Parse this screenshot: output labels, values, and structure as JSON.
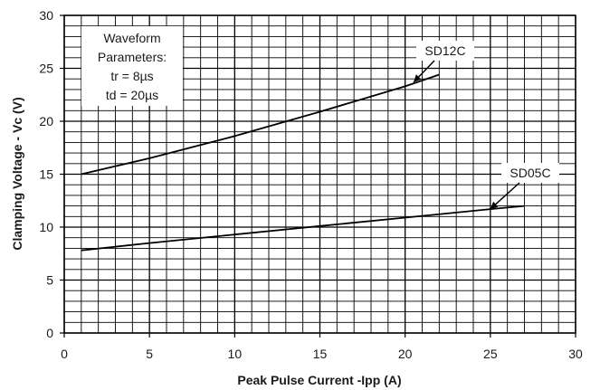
{
  "chart_data": {
    "type": "line",
    "xlabel": "Peak Pulse Current -Ipp (A)",
    "ylabel": "Clamping Voltage - Vc (V)",
    "xlim": [
      0,
      30
    ],
    "ylim": [
      0,
      30
    ],
    "x_ticks": [
      0,
      5,
      10,
      15,
      20,
      25,
      30
    ],
    "y_ticks": [
      0,
      5,
      10,
      15,
      20,
      25,
      30
    ],
    "x_tick_labels": [
      "0",
      "5",
      "10",
      "15",
      "20",
      "25",
      "30"
    ],
    "y_tick_labels": [
      "0",
      "5",
      "10",
      "15",
      "20",
      "25",
      "30"
    ],
    "grid": true,
    "minor_grid_step": 1,
    "series": [
      {
        "name": "SD12C",
        "color": "#000000",
        "x": [
          1,
          5,
          10,
          15,
          20,
          22
        ],
        "y": [
          15,
          16.5,
          18.6,
          20.9,
          23.3,
          24.4
        ]
      },
      {
        "name": "SD05C",
        "color": "#000000",
        "x": [
          1,
          5,
          10,
          15,
          20,
          25,
          27
        ],
        "y": [
          7.8,
          8.5,
          9.3,
          10.1,
          10.9,
          11.7,
          12
        ]
      }
    ],
    "annotations": [
      {
        "text": "SD12C",
        "arrow_to": [
          20.5,
          23.7
        ]
      },
      {
        "text": "SD05C",
        "arrow_to": [
          25,
          11.7
        ]
      }
    ],
    "note_lines": [
      "Waveform",
      "Parameters:",
      "tr = 8µs",
      "td = 20µs"
    ]
  }
}
